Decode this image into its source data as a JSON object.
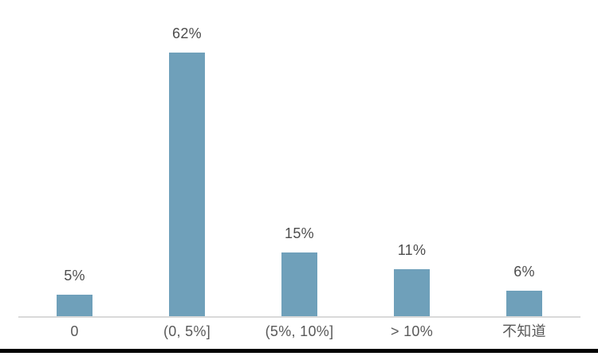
{
  "chart_data": {
    "type": "bar",
    "title": "",
    "xlabel": "",
    "ylabel": "",
    "categories": [
      "0",
      "(0, 5%]",
      "(5%, 10%]",
      "> 10%",
      "不知道"
    ],
    "values": [
      5,
      62,
      15,
      11,
      6
    ],
    "value_labels": [
      "5%",
      "62%",
      "15%",
      "11%",
      "6%"
    ],
    "ylim": [
      0,
      65
    ],
    "grid": false,
    "legend": false,
    "value_labels_position": "above-bar",
    "colors": {
      "bar": "#6FA0BA",
      "value_label": "#4D4D4D",
      "category_label": "#595959",
      "axis_line": "#D9D9D9",
      "bottom_rule": "#000000",
      "background": "#FFFFFF"
    }
  }
}
